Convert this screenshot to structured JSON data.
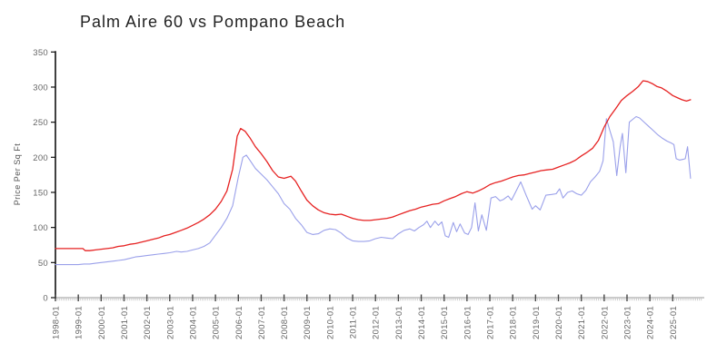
{
  "chart": {
    "title": "Palm Aire 60 vs Pompano Beach",
    "ylabel": "Price Per Sq Ft"
  },
  "chart_data": {
    "type": "line",
    "title": "Palm Aire 60 vs Pompano Beach",
    "xlabel": "",
    "ylabel": "Price Per Sq Ft",
    "x_unit": "decimal_year",
    "xlim": [
      1998,
      2026.3
    ],
    "ylim": [
      0,
      350
    ],
    "y_ticks": [
      0,
      50,
      100,
      150,
      200,
      250,
      300,
      350
    ],
    "x_tick_years": [
      1998,
      1999,
      2000,
      2001,
      2002,
      2003,
      2004,
      2005,
      2006,
      2007,
      2008,
      2009,
      2010,
      2011,
      2012,
      2013,
      2014,
      2015,
      2016,
      2017,
      2018,
      2019,
      2020,
      2021,
      2022,
      2023,
      2024,
      2025
    ],
    "x_tick_labels": [
      "1998-01",
      "1999-01",
      "2000-01",
      "2001-01",
      "2002-01",
      "2003-01",
      "2004-01",
      "2005-01",
      "2006-01",
      "2007-01",
      "2008-01",
      "2009-01",
      "2010-01",
      "2011-01",
      "2012-01",
      "2013-01",
      "2014-01",
      "2015-01",
      "2016-01",
      "2017-01",
      "2018-01",
      "2019-01",
      "2020-01",
      "2021-01",
      "2022-01",
      "2023-01",
      "2024-01",
      "2025-01"
    ],
    "grid": false,
    "legend": "none",
    "series": [
      {
        "name": "Palm Aire 60",
        "color": "#9aa0ea",
        "stroke_width": 1.1,
        "points": [
          [
            1998.0,
            47
          ],
          [
            1998.25,
            47
          ],
          [
            1998.5,
            47
          ],
          [
            1998.75,
            47
          ],
          [
            1999.0,
            47
          ],
          [
            1999.25,
            48
          ],
          [
            1999.5,
            48
          ],
          [
            1999.75,
            49
          ],
          [
            2000.0,
            50
          ],
          [
            2000.25,
            51
          ],
          [
            2000.5,
            52
          ],
          [
            2000.75,
            53
          ],
          [
            2001.0,
            54
          ],
          [
            2001.25,
            56
          ],
          [
            2001.5,
            58
          ],
          [
            2001.75,
            59
          ],
          [
            2002.0,
            60
          ],
          [
            2002.25,
            61
          ],
          [
            2002.5,
            62
          ],
          [
            2002.75,
            63
          ],
          [
            2003.0,
            64
          ],
          [
            2003.3,
            66
          ],
          [
            2003.5,
            65
          ],
          [
            2003.75,
            66
          ],
          [
            2004.0,
            68
          ],
          [
            2004.25,
            70
          ],
          [
            2004.5,
            73
          ],
          [
            2004.75,
            78
          ],
          [
            2005.0,
            89
          ],
          [
            2005.25,
            100
          ],
          [
            2005.5,
            113
          ],
          [
            2005.75,
            131
          ],
          [
            2006.0,
            172
          ],
          [
            2006.2,
            200
          ],
          [
            2006.35,
            203
          ],
          [
            2006.5,
            196
          ],
          [
            2006.75,
            184
          ],
          [
            2007.0,
            176
          ],
          [
            2007.25,
            168
          ],
          [
            2007.5,
            158
          ],
          [
            2007.75,
            148
          ],
          [
            2008.0,
            134
          ],
          [
            2008.25,
            126
          ],
          [
            2008.5,
            113
          ],
          [
            2008.75,
            104
          ],
          [
            2009.0,
            93
          ],
          [
            2009.25,
            90
          ],
          [
            2009.5,
            91
          ],
          [
            2009.75,
            96
          ],
          [
            2010.0,
            98
          ],
          [
            2010.25,
            97
          ],
          [
            2010.5,
            92
          ],
          [
            2010.75,
            85
          ],
          [
            2011.0,
            81
          ],
          [
            2011.25,
            80
          ],
          [
            2011.5,
            80
          ],
          [
            2011.75,
            81
          ],
          [
            2012.0,
            84
          ],
          [
            2012.25,
            86
          ],
          [
            2012.5,
            85
          ],
          [
            2012.75,
            84
          ],
          [
            2013.0,
            91
          ],
          [
            2013.25,
            96
          ],
          [
            2013.5,
            98
          ],
          [
            2013.7,
            95
          ],
          [
            2013.9,
            100
          ],
          [
            2014.1,
            104
          ],
          [
            2014.25,
            109
          ],
          [
            2014.4,
            100
          ],
          [
            2014.6,
            109
          ],
          [
            2014.75,
            103
          ],
          [
            2014.9,
            108
          ],
          [
            2015.05,
            88
          ],
          [
            2015.2,
            86
          ],
          [
            2015.4,
            107
          ],
          [
            2015.55,
            94
          ],
          [
            2015.7,
            105
          ],
          [
            2015.9,
            92
          ],
          [
            2016.05,
            90
          ],
          [
            2016.2,
            100
          ],
          [
            2016.35,
            135
          ],
          [
            2016.5,
            95
          ],
          [
            2016.65,
            118
          ],
          [
            2016.85,
            96
          ],
          [
            2017.05,
            142
          ],
          [
            2017.25,
            144
          ],
          [
            2017.45,
            138
          ],
          [
            2017.6,
            140
          ],
          [
            2017.8,
            145
          ],
          [
            2017.95,
            139
          ],
          [
            2018.15,
            152
          ],
          [
            2018.35,
            165
          ],
          [
            2018.6,
            145
          ],
          [
            2018.85,
            126
          ],
          [
            2019.0,
            131
          ],
          [
            2019.2,
            125
          ],
          [
            2019.45,
            146
          ],
          [
            2019.7,
            147
          ],
          [
            2019.9,
            148
          ],
          [
            2020.05,
            155
          ],
          [
            2020.2,
            142
          ],
          [
            2020.4,
            150
          ],
          [
            2020.6,
            152
          ],
          [
            2020.8,
            148
          ],
          [
            2021.0,
            146
          ],
          [
            2021.2,
            153
          ],
          [
            2021.4,
            165
          ],
          [
            2021.6,
            172
          ],
          [
            2021.8,
            180
          ],
          [
            2021.95,
            195
          ],
          [
            2022.1,
            255
          ],
          [
            2022.25,
            238
          ],
          [
            2022.4,
            222
          ],
          [
            2022.55,
            174
          ],
          [
            2022.7,
            215
          ],
          [
            2022.8,
            234
          ],
          [
            2022.95,
            178
          ],
          [
            2023.1,
            250
          ],
          [
            2023.25,
            254
          ],
          [
            2023.4,
            258
          ],
          [
            2023.55,
            256
          ],
          [
            2023.75,
            250
          ],
          [
            2023.95,
            244
          ],
          [
            2024.15,
            238
          ],
          [
            2024.35,
            232
          ],
          [
            2024.55,
            227
          ],
          [
            2024.75,
            223
          ],
          [
            2024.95,
            220
          ],
          [
            2025.05,
            218
          ],
          [
            2025.15,
            198
          ],
          [
            2025.3,
            196
          ],
          [
            2025.45,
            197
          ],
          [
            2025.55,
            198
          ],
          [
            2025.65,
            215
          ],
          [
            2025.78,
            170
          ]
        ]
      },
      {
        "name": "Pompano Beach",
        "color": "#e62222",
        "stroke_width": 1.3,
        "points": [
          [
            1998.0,
            70
          ],
          [
            1998.25,
            70
          ],
          [
            1998.5,
            70
          ],
          [
            1998.75,
            70
          ],
          [
            1999.0,
            70
          ],
          [
            1999.2,
            70
          ],
          [
            1999.3,
            67
          ],
          [
            1999.5,
            67
          ],
          [
            1999.75,
            68
          ],
          [
            2000.0,
            69
          ],
          [
            2000.25,
            70
          ],
          [
            2000.5,
            71
          ],
          [
            2000.75,
            73
          ],
          [
            2001.0,
            74
          ],
          [
            2001.25,
            76
          ],
          [
            2001.5,
            77
          ],
          [
            2001.75,
            79
          ],
          [
            2002.0,
            81
          ],
          [
            2002.25,
            83
          ],
          [
            2002.5,
            85
          ],
          [
            2002.75,
            88
          ],
          [
            2003.0,
            90
          ],
          [
            2003.25,
            93
          ],
          [
            2003.5,
            96
          ],
          [
            2003.75,
            99
          ],
          [
            2004.0,
            103
          ],
          [
            2004.25,
            107
          ],
          [
            2004.5,
            112
          ],
          [
            2004.75,
            118
          ],
          [
            2005.0,
            126
          ],
          [
            2005.25,
            137
          ],
          [
            2005.5,
            152
          ],
          [
            2005.75,
            183
          ],
          [
            2005.95,
            230
          ],
          [
            2006.1,
            241
          ],
          [
            2006.3,
            237
          ],
          [
            2006.5,
            228
          ],
          [
            2006.75,
            215
          ],
          [
            2007.0,
            205
          ],
          [
            2007.25,
            194
          ],
          [
            2007.5,
            181
          ],
          [
            2007.75,
            172
          ],
          [
            2008.0,
            170
          ],
          [
            2008.3,
            173
          ],
          [
            2008.5,
            166
          ],
          [
            2008.75,
            152
          ],
          [
            2009.0,
            139
          ],
          [
            2009.25,
            131
          ],
          [
            2009.5,
            125
          ],
          [
            2009.75,
            121
          ],
          [
            2010.0,
            119
          ],
          [
            2010.25,
            118
          ],
          [
            2010.5,
            119
          ],
          [
            2010.75,
            116
          ],
          [
            2011.0,
            113
          ],
          [
            2011.25,
            111
          ],
          [
            2011.5,
            110
          ],
          [
            2011.75,
            110
          ],
          [
            2012.0,
            111
          ],
          [
            2012.25,
            112
          ],
          [
            2012.5,
            113
          ],
          [
            2012.75,
            115
          ],
          [
            2013.0,
            118
          ],
          [
            2013.25,
            121
          ],
          [
            2013.5,
            124
          ],
          [
            2013.75,
            126
          ],
          [
            2014.0,
            129
          ],
          [
            2014.25,
            131
          ],
          [
            2014.5,
            133
          ],
          [
            2014.75,
            134
          ],
          [
            2015.0,
            138
          ],
          [
            2015.25,
            141
          ],
          [
            2015.5,
            144
          ],
          [
            2015.75,
            148
          ],
          [
            2016.0,
            151
          ],
          [
            2016.25,
            149
          ],
          [
            2016.5,
            152
          ],
          [
            2016.75,
            156
          ],
          [
            2017.0,
            161
          ],
          [
            2017.25,
            164
          ],
          [
            2017.5,
            166
          ],
          [
            2017.75,
            169
          ],
          [
            2018.0,
            172
          ],
          [
            2018.25,
            174
          ],
          [
            2018.5,
            175
          ],
          [
            2018.75,
            177
          ],
          [
            2019.0,
            179
          ],
          [
            2019.25,
            181
          ],
          [
            2019.5,
            182
          ],
          [
            2019.75,
            183
          ],
          [
            2020.0,
            186
          ],
          [
            2020.25,
            189
          ],
          [
            2020.5,
            192
          ],
          [
            2020.75,
            196
          ],
          [
            2021.0,
            202
          ],
          [
            2021.25,
            207
          ],
          [
            2021.5,
            213
          ],
          [
            2021.75,
            224
          ],
          [
            2022.0,
            243
          ],
          [
            2022.25,
            258
          ],
          [
            2022.5,
            269
          ],
          [
            2022.75,
            281
          ],
          [
            2023.0,
            288
          ],
          [
            2023.25,
            294
          ],
          [
            2023.5,
            301
          ],
          [
            2023.7,
            309
          ],
          [
            2023.9,
            308
          ],
          [
            2024.1,
            305
          ],
          [
            2024.3,
            301
          ],
          [
            2024.5,
            299
          ],
          [
            2024.75,
            294
          ],
          [
            2025.0,
            288
          ],
          [
            2025.2,
            285
          ],
          [
            2025.4,
            282
          ],
          [
            2025.6,
            280
          ],
          [
            2025.78,
            282
          ]
        ]
      }
    ]
  }
}
